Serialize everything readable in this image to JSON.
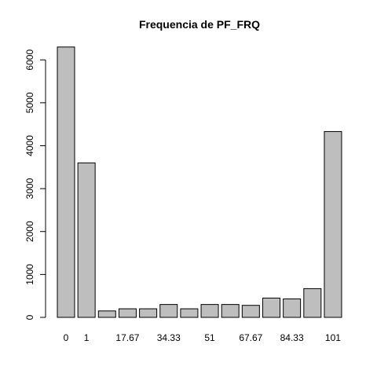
{
  "chart_data": {
    "type": "bar",
    "title": "Frequencia de PF_FRQ",
    "xlabel": "",
    "ylabel": "",
    "ylim": [
      0,
      6300
    ],
    "yticks": [
      0,
      1000,
      2000,
      3000,
      4000,
      5000,
      6000
    ],
    "ytick_labels": [
      "0",
      "1000",
      "2000",
      "3000",
      "4000",
      "5000",
      "6000"
    ],
    "categories": [
      "0",
      "1",
      "",
      "17.67",
      "",
      "34.33",
      "",
      "51",
      "",
      "67.67",
      "",
      "84.33",
      "",
      "101"
    ],
    "values": [
      6300,
      3600,
      150,
      200,
      200,
      300,
      200,
      300,
      300,
      280,
      450,
      430,
      670,
      4330
    ],
    "xtick_labels": [
      "0",
      "1",
      "17.67",
      "34.33",
      "51",
      "67.67",
      "84.33",
      "101"
    ],
    "grid": false,
    "bar_color": "#bebebe",
    "edge_color": "#000000"
  }
}
